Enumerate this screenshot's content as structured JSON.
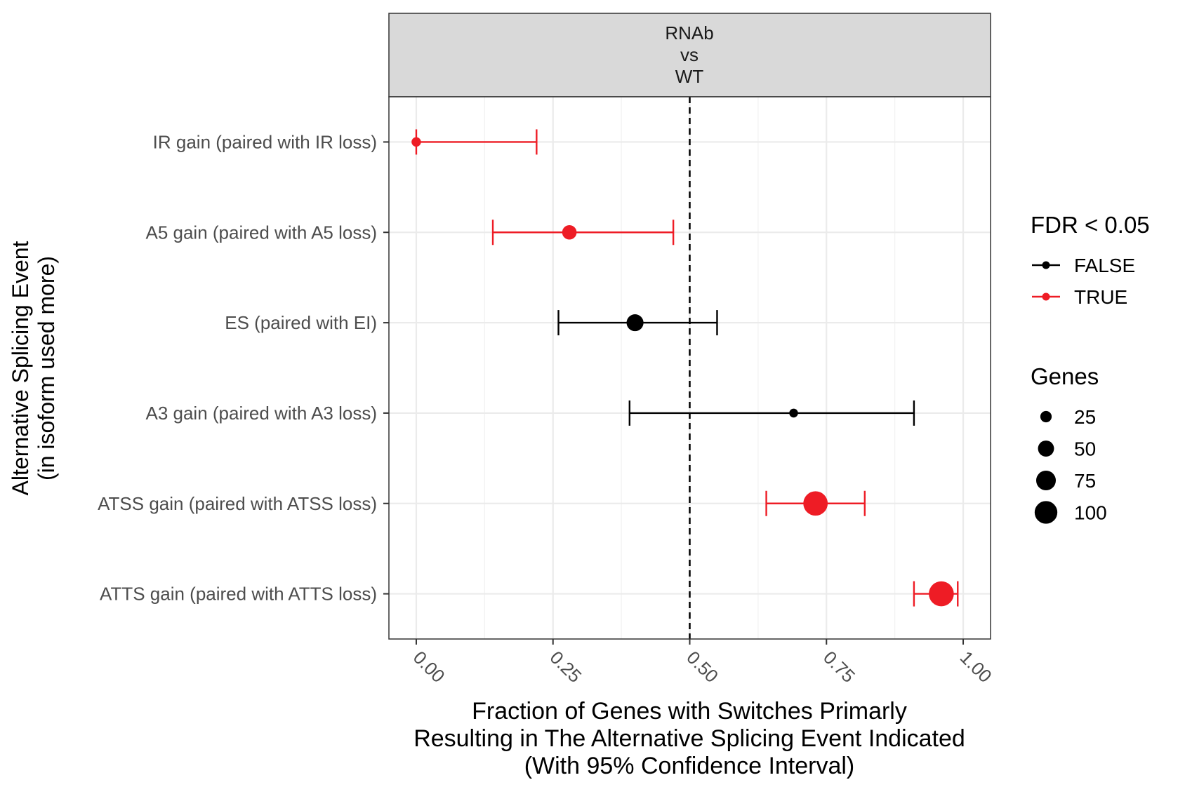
{
  "chart_data": {
    "type": "dot-errorbar",
    "facet_label": [
      "RNAb",
      "vs",
      "WT"
    ],
    "xlabel": [
      "Fraction of Genes with Switches Primarly",
      "Resulting in The Alternative Splicing Event Indicated",
      "(With 95% Confidence Interval)"
    ],
    "ylabel": [
      "Alternative Splicing Event",
      "(in isoform used more)"
    ],
    "xlim": [
      -0.05,
      1.05
    ],
    "x_ticks": [
      0.0,
      0.25,
      0.5,
      0.75,
      1.0
    ],
    "x_tick_labels": [
      "0.00",
      "0.25",
      "0.50",
      "0.75",
      "1.00"
    ],
    "reference_line": 0.5,
    "categories": [
      "IR gain (paired with IR loss)",
      "A5 gain (paired with A5 loss)",
      "ES (paired with EI)",
      "A3 gain (paired with A3 loss)",
      "ATSS gain (paired with ATSS loss)",
      "ATTS gain (paired with ATTS loss)"
    ],
    "points": [
      {
        "category": "IR gain (paired with IR loss)",
        "value": 0.0,
        "ci_low": 0.0,
        "ci_high": 0.22,
        "genes": 15,
        "significant": true
      },
      {
        "category": "A5 gain (paired with A5 loss)",
        "value": 0.28,
        "ci_low": 0.14,
        "ci_high": 0.47,
        "genes": 35,
        "significant": true
      },
      {
        "category": "ES (paired with EI)",
        "value": 0.4,
        "ci_low": 0.26,
        "ci_high": 0.55,
        "genes": 48,
        "significant": false
      },
      {
        "category": "A3 gain (paired with A3 loss)",
        "value": 0.69,
        "ci_low": 0.39,
        "ci_high": 0.91,
        "genes": 13,
        "significant": false
      },
      {
        "category": "ATSS gain (paired with ATSS loss)",
        "value": 0.73,
        "ci_low": 0.64,
        "ci_high": 0.82,
        "genes": 100,
        "significant": true
      },
      {
        "category": "ATTS gain (paired with ATTS loss)",
        "value": 0.96,
        "ci_low": 0.91,
        "ci_high": 0.99,
        "genes": 105,
        "significant": true
      }
    ],
    "legend_color": {
      "title": "FDR < 0.05",
      "entries": [
        {
          "label": "FALSE",
          "color": "#000000"
        },
        {
          "label": "TRUE",
          "color": "#ee1c25"
        }
      ]
    },
    "legend_size": {
      "title": "Genes",
      "entries": [
        {
          "label": "25",
          "value": 25
        },
        {
          "label": "50",
          "value": 50
        },
        {
          "label": "75",
          "value": 75
        },
        {
          "label": "100",
          "value": 100
        }
      ]
    },
    "colors": {
      "false": "#000000",
      "true": "#ee1c25",
      "strip": "#d9d9d9",
      "grid": "#ebebeb"
    }
  }
}
